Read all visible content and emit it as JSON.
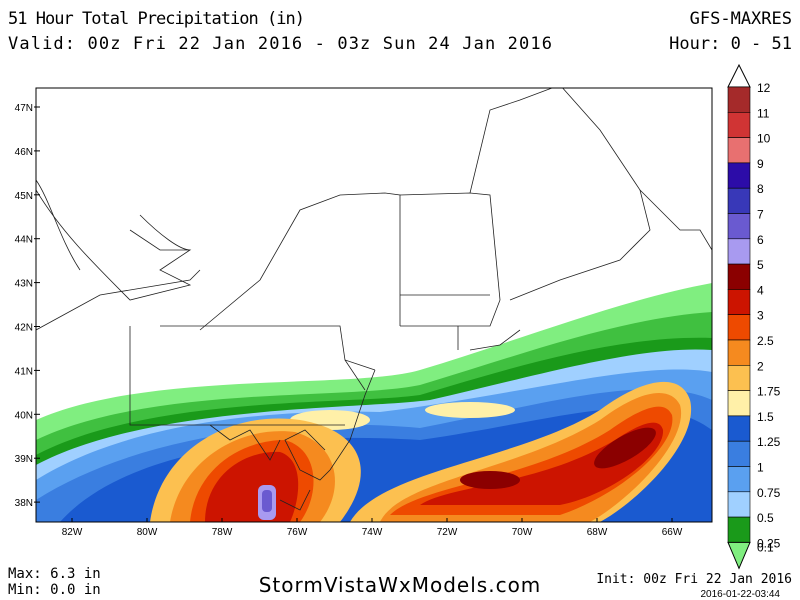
{
  "header": {
    "title": "51 Hour Total Precipitation (in)",
    "valid": "Valid: 00z Fri 22 Jan 2016 - 03z Sun 24 Jan 2016",
    "model": "GFS-MAXRES",
    "hours": "Hour: 0 - 51"
  },
  "map": {
    "lat_labels": [
      "47N",
      "46N",
      "45N",
      "44N",
      "43N",
      "42N",
      "41N",
      "40N",
      "39N",
      "38N"
    ],
    "lon_labels": [
      "82W",
      "80W",
      "78W",
      "76W",
      "74W",
      "72W",
      "70W",
      "68W",
      "66W"
    ]
  },
  "colorbar": {
    "labels": [
      "12",
      "11",
      "10",
      "9",
      "8",
      "7",
      "6",
      "5",
      "4",
      "3",
      "2.5",
      "2",
      "1.75",
      "1.5",
      "1.25",
      "1",
      "0.75",
      "0.5",
      "0.25",
      "0.1"
    ],
    "colors": [
      "#a52a2a",
      "#d03434",
      "#e87070",
      "#2c0ca8",
      "#3838b8",
      "#6a5ad0",
      "#a89af0",
      "#8b0000",
      "#cc1400",
      "#ee4a00",
      "#f58a1f",
      "#fcc050",
      "#fff0a8",
      "#1a5ad0",
      "#3a7ee0",
      "#5aa0f0",
      "#a0d0ff",
      "#1a9a1a",
      "#40c040",
      "#80ee80"
    ]
  },
  "footer": {
    "max": "Max: 6.3 in",
    "min": "Min: 0.0 in",
    "site": "StormVistaWxModels.com",
    "init": "Init: 00z Fri 22 Jan 2016",
    "timestamp": "2016-01-22-03:44"
  }
}
